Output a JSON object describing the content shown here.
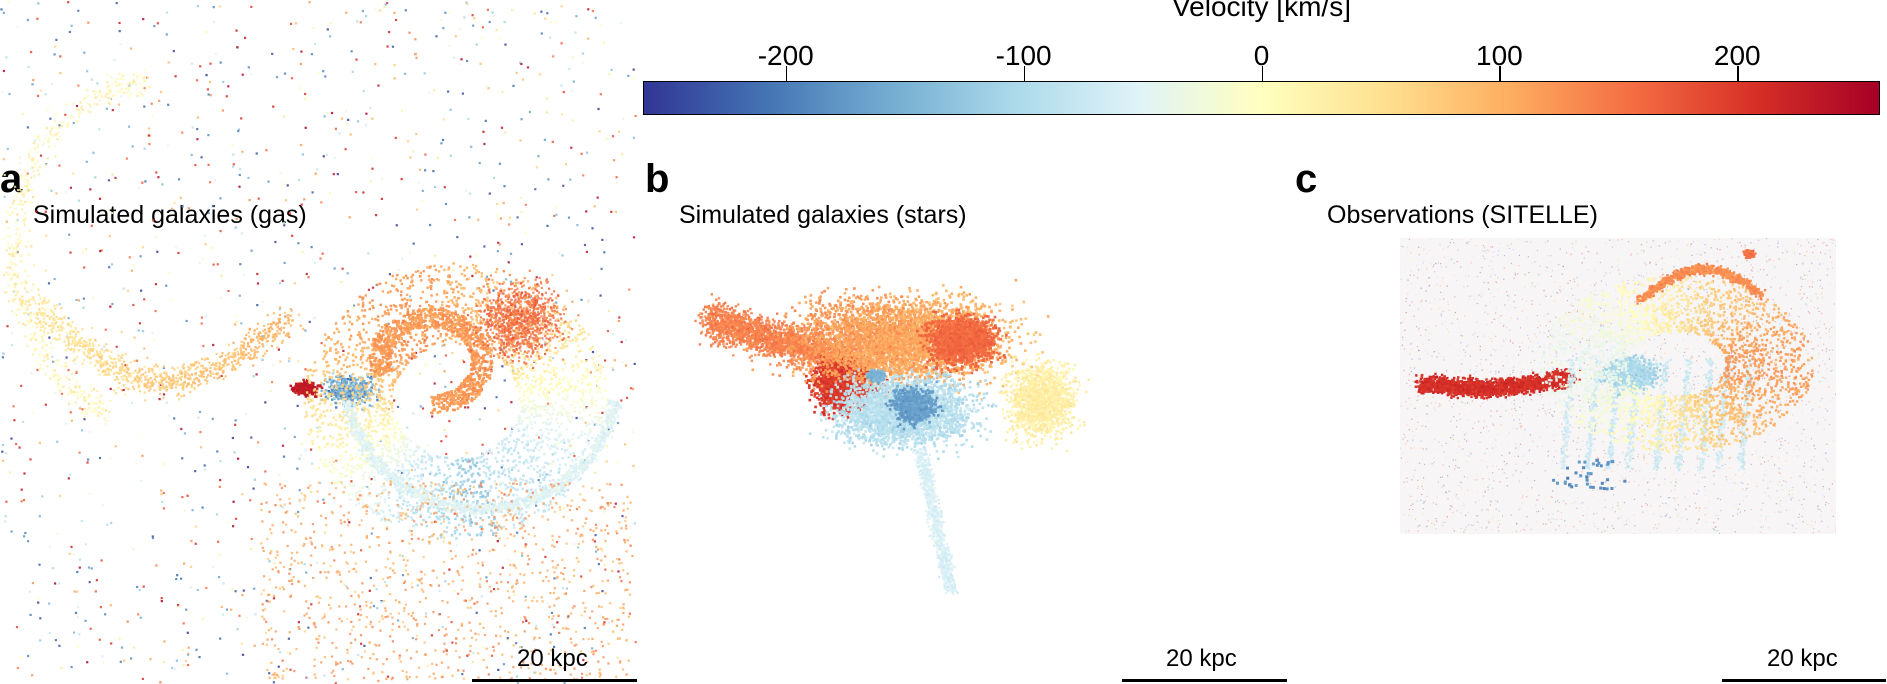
{
  "colorbar": {
    "title": "Velocity [km/s]",
    "tick_labels": [
      "-200",
      "-100",
      "0",
      "100",
      "200"
    ],
    "range_min": -260,
    "range_max": 260,
    "colors": [
      "#313695",
      "#4575b4",
      "#74add1",
      "#abd9e9",
      "#e0f3f8",
      "#ffffbf",
      "#fee090",
      "#fdae61",
      "#f46d43",
      "#d73027",
      "#a50026"
    ]
  },
  "panels": [
    {
      "letter": "a",
      "title": "Simulated galaxies (gas)",
      "scale_label": "20 kpc"
    },
    {
      "letter": "b",
      "title": "Simulated galaxies (stars)",
      "scale_label": "20 kpc"
    },
    {
      "letter": "c",
      "title": "Observations (SITELLE)",
      "scale_label": "20 kpc"
    }
  ]
}
